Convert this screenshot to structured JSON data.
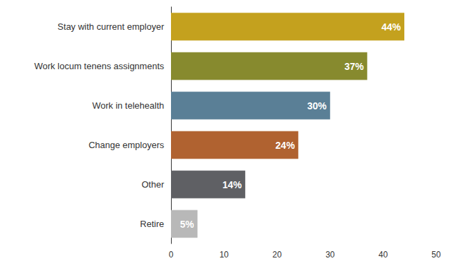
{
  "chart_data": {
    "type": "bar",
    "orientation": "horizontal",
    "categories": [
      "Stay with current employer",
      "Work locum tenens assignments",
      "Work in telehealth",
      "Change employers",
      "Other",
      "Retire"
    ],
    "values": [
      44,
      37,
      30,
      24,
      14,
      5
    ],
    "value_labels": [
      "44%",
      "37%",
      "30%",
      "24%",
      "14%",
      "5%"
    ],
    "colors": [
      "#c4a11e",
      "#878a2e",
      "#5a7f96",
      "#b06230",
      "#5f6064",
      "#b8b8b8"
    ],
    "xlim": [
      0,
      50
    ],
    "xticks": [
      0,
      10,
      20,
      30,
      40,
      50
    ],
    "grid": false,
    "data_labels": true
  }
}
